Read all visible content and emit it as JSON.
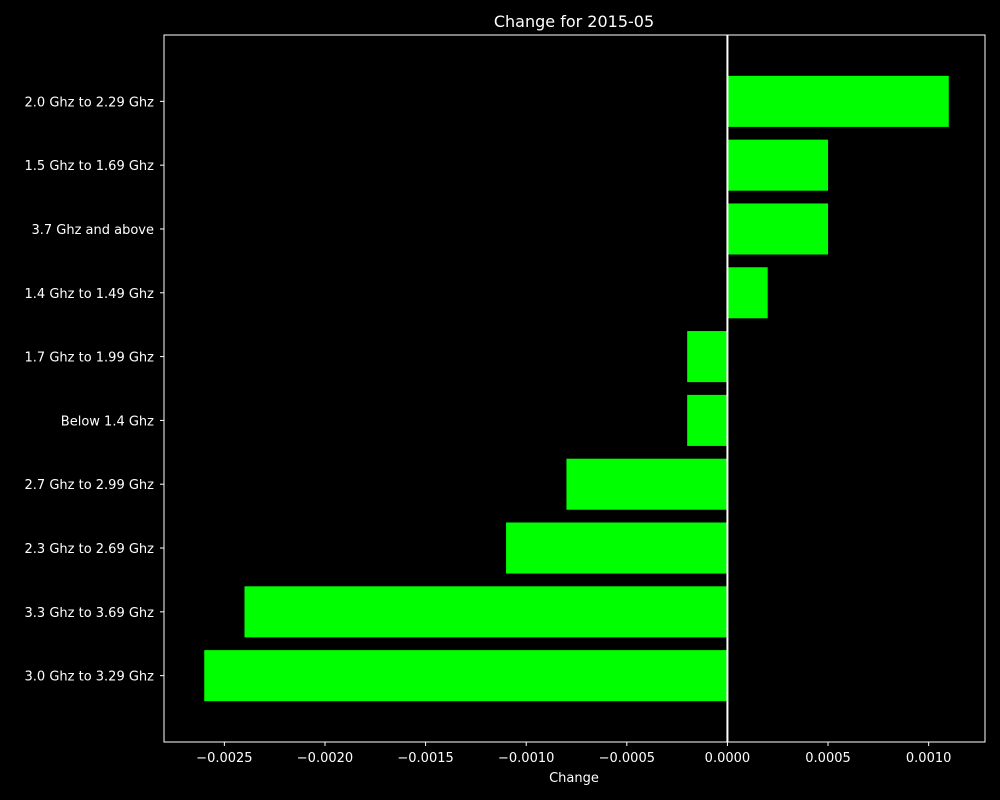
{
  "colors": {
    "background": "#000000",
    "foreground": "#ffffff",
    "bar": "#00ff00",
    "zero_line": "#ffffff"
  },
  "chart_data": {
    "type": "bar",
    "orientation": "horizontal",
    "title": "Change for 2015-05",
    "xlabel": "Change",
    "ylabel": "",
    "categories": [
      "2.0 Ghz to 2.29 Ghz",
      "1.5 Ghz to 1.69 Ghz",
      "3.7 Ghz and above",
      "1.4 Ghz to 1.49 Ghz",
      "1.7 Ghz to 1.99 Ghz",
      "Below 1.4 Ghz",
      "2.7 Ghz to 2.99 Ghz",
      "2.3 Ghz to 2.69 Ghz",
      "3.3 Ghz to 3.69 Ghz",
      "3.0 Ghz to 3.29 Ghz"
    ],
    "values": [
      0.0011,
      0.0005,
      0.0005,
      0.0002,
      -0.0002,
      -0.0002,
      -0.0008,
      -0.0011,
      -0.0024,
      -0.0026
    ],
    "xlim": [
      -0.0028,
      0.00128
    ],
    "xticks": [
      -0.0025,
      -0.002,
      -0.0015,
      -0.001,
      -0.0005,
      0.0,
      0.0005,
      0.001
    ],
    "xtick_labels": [
      "−0.0025",
      "−0.0020",
      "−0.0015",
      "−0.0010",
      "−0.0005",
      "0.0000",
      "0.0005",
      "0.0010"
    ],
    "zero_line": true,
    "grid": false,
    "legend": "none"
  }
}
